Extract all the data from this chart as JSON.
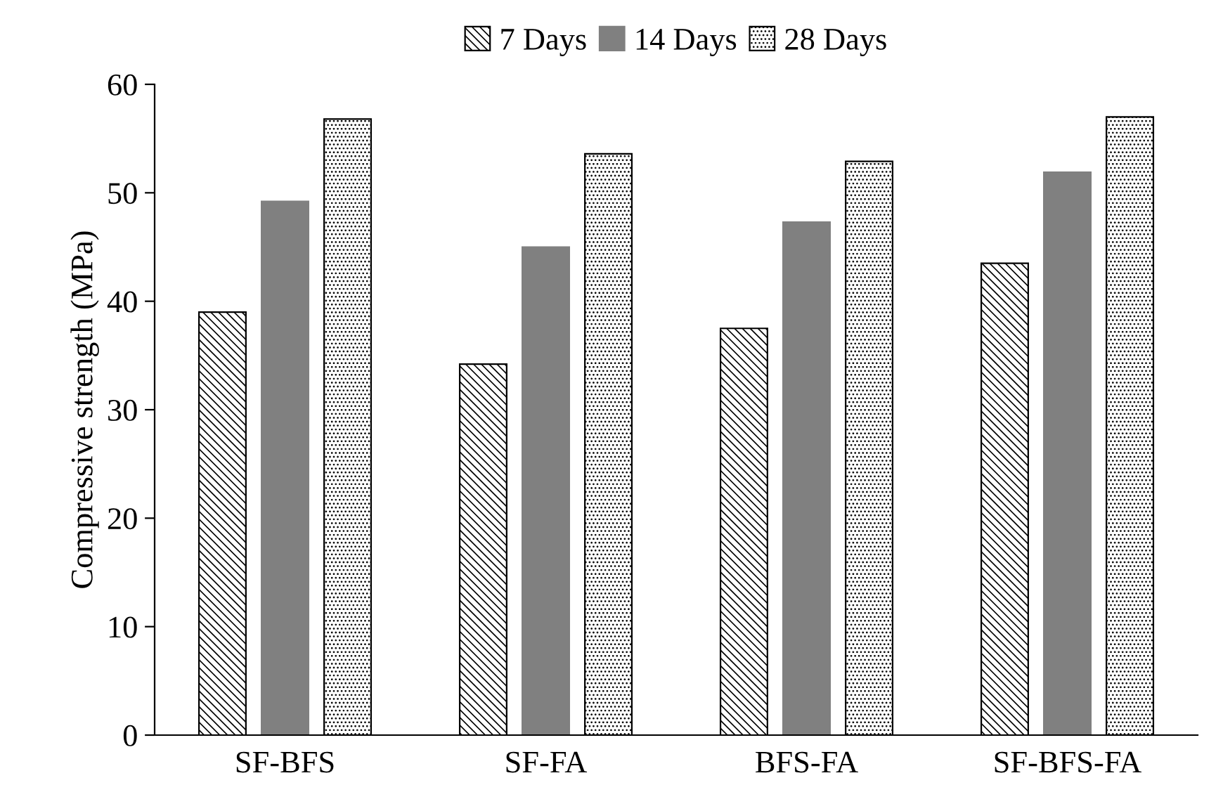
{
  "chart_data": {
    "type": "bar",
    "ylabel": "Compressive strength (MPa)",
    "categories": [
      "SF-BFS",
      "SF-FA",
      "BFS-FA",
      "SF-BFS-FA"
    ],
    "series": [
      {
        "name": "7 Days",
        "color": "#000000",
        "values": [
          39.0,
          34.2,
          37.5,
          43.5
        ]
      },
      {
        "name": "14 Days",
        "color": "#808080",
        "values": [
          49.2,
          45.0,
          47.3,
          51.9
        ]
      },
      {
        "name": "28 Days",
        "color": "#000000",
        "values": [
          56.8,
          53.6,
          52.9,
          57.0
        ]
      }
    ],
    "ylim": [
      0,
      60
    ],
    "yticks": [
      0,
      10,
      20,
      30,
      40,
      50,
      60
    ],
    "grid": false,
    "legend": "top"
  }
}
